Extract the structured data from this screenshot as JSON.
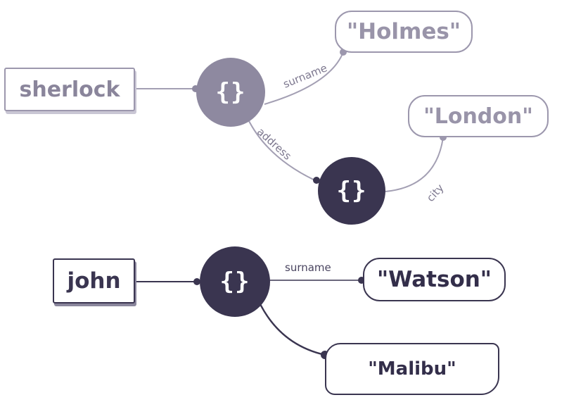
{
  "graph1": {
    "root_key": "sherlock",
    "object_symbol": "{}",
    "surname_edge": "surname",
    "surname_value": "\"Holmes\"",
    "address_edge": "address",
    "address_object_symbol": "{}",
    "city_edge": "city",
    "city_value": "\"London\""
  },
  "graph2": {
    "root_key": "john",
    "object_symbol": "{}",
    "surname_edge": "surname",
    "surname_value": "\"Watson\"",
    "second_value": "\"Malibu\""
  },
  "colors": {
    "faded": "#8e89a0",
    "dark": "#3a3550",
    "faded_line": "#9c97ad"
  }
}
